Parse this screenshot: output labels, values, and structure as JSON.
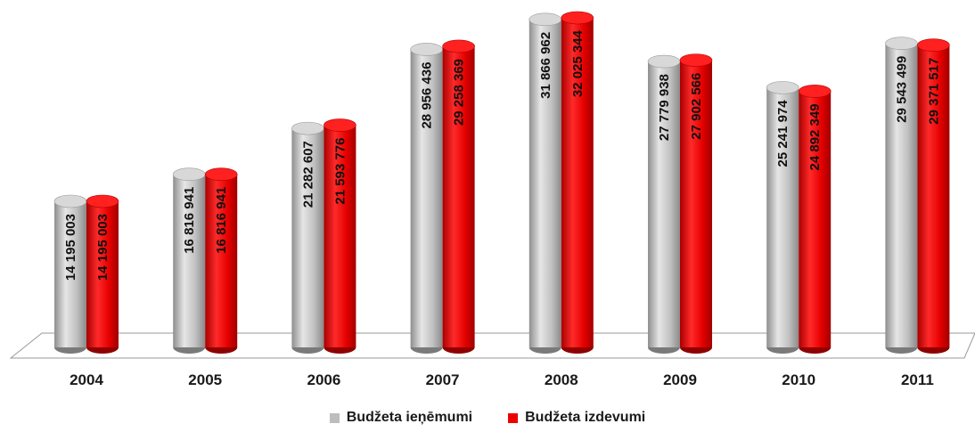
{
  "chart_data": {
    "type": "bar",
    "categories": [
      "2004",
      "2005",
      "2006",
      "2007",
      "2008",
      "2009",
      "2010",
      "2011"
    ],
    "series": [
      {
        "name": "Budžeta ieņēmumi",
        "color": "#bdbdbd",
        "values": [
          14195003,
          16816941,
          21282607,
          28956436,
          31866962,
          27779938,
          25241974,
          29543499
        ],
        "labels": [
          "14 195 003",
          "16 816 941",
          "21 282 607",
          "28 956 436",
          "31 866 962",
          "27 779 938",
          "25 241 974",
          "29 543 499"
        ]
      },
      {
        "name": "Budžeta izdevumi",
        "color": "#ee0000",
        "values": [
          14195003,
          16816941,
          21593776,
          29258369,
          32025344,
          27902566,
          24892349,
          29371517
        ],
        "labels": [
          "14 195 003",
          "16 816 941",
          "21 593 776",
          "29 258 369",
          "32 025 344",
          "27 902 566",
          "24 892 349",
          "29 371 517"
        ]
      }
    ],
    "ylim": [
      0,
      32025344
    ],
    "grid": false,
    "legend_position": "bottom",
    "style": "3d-cylinder"
  }
}
